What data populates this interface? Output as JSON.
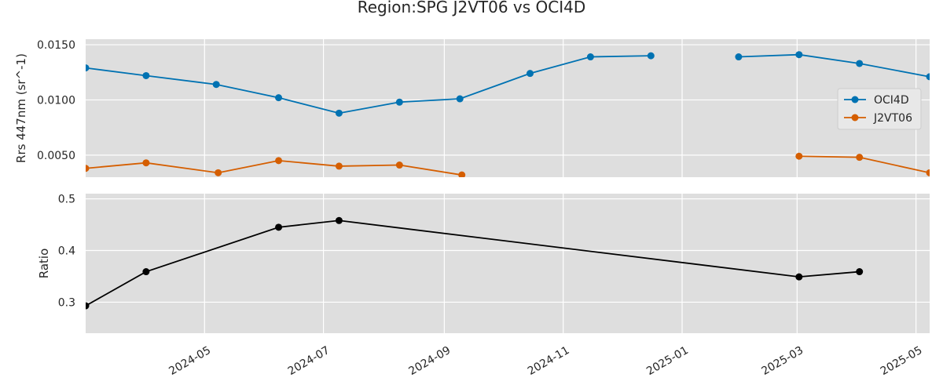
{
  "chart_data": {
    "type": "line",
    "title": "Region:SPG J2VT06 vs OCI4D",
    "x_tick_labels": [
      "2024-05",
      "2024-07",
      "2024-09",
      "2024-11",
      "2025-01",
      "2025-03",
      "2025-05"
    ],
    "x_ticks": [
      "2024-05-01",
      "2024-07-01",
      "2024-09-01",
      "2024-11-01",
      "2025-01-01",
      "2025-03-01",
      "2025-05-01"
    ],
    "xlim": [
      "2024-03-01",
      "2025-05-08"
    ],
    "grid": true,
    "subplots": [
      {
        "ylabel": "Rrs 447nm (sr^-1)",
        "ylim": [
          0.003,
          0.0155
        ],
        "y_ticks": [
          0.005,
          0.01,
          0.015
        ],
        "y_tick_labels": [
          "0.0050",
          "0.0100",
          "0.0150"
        ],
        "legend_position": "center-right",
        "series": [
          {
            "name": "OCI4D",
            "color": "#0072b2",
            "points": [
              {
                "x": "2024-03-01",
                "y": 0.0129
              },
              {
                "x": "2024-04-01",
                "y": 0.0122
              },
              {
                "x": "2024-05-07",
                "y": 0.0114
              },
              {
                "x": "2024-06-08",
                "y": 0.0102
              },
              {
                "x": "2024-07-09",
                "y": 0.0088
              },
              {
                "x": "2024-08-09",
                "y": 0.0098
              },
              {
                "x": "2024-09-09",
                "y": 0.0101
              },
              {
                "x": "2024-10-15",
                "y": 0.0124
              },
              {
                "x": "2024-11-15",
                "y": 0.0139
              },
              {
                "x": "2024-12-16",
                "y": 0.014
              },
              {
                "x": null,
                "y": null
              },
              {
                "x": "2025-01-30",
                "y": 0.0139
              },
              {
                "x": "2025-03-02",
                "y": 0.0141
              },
              {
                "x": "2025-04-02",
                "y": 0.0133
              },
              {
                "x": "2025-05-08",
                "y": 0.0121
              }
            ]
          },
          {
            "name": "J2VT06",
            "color": "#d55e00",
            "points": [
              {
                "x": "2024-03-01",
                "y": 0.0038
              },
              {
                "x": "2024-04-01",
                "y": 0.0043
              },
              {
                "x": "2024-05-08",
                "y": 0.0034
              },
              {
                "x": "2024-06-08",
                "y": 0.0045
              },
              {
                "x": "2024-07-09",
                "y": 0.004
              },
              {
                "x": "2024-08-09",
                "y": 0.0041
              },
              {
                "x": "2024-09-10",
                "y": 0.0032
              },
              {
                "x": null,
                "y": null
              },
              {
                "x": "2025-03-02",
                "y": 0.0049
              },
              {
                "x": "2025-04-02",
                "y": 0.0048
              },
              {
                "x": "2025-05-08",
                "y": 0.0034
              }
            ]
          }
        ]
      },
      {
        "ylabel": "Ratio",
        "ylim": [
          0.24,
          0.51
        ],
        "y_ticks": [
          0.3,
          0.4,
          0.5
        ],
        "y_tick_labels": [
          "0.3",
          "0.4",
          "0.5"
        ],
        "series": [
          {
            "color": "#000000",
            "points": [
              {
                "x": "2024-03-01",
                "y": 0.293
              },
              {
                "x": "2024-04-01",
                "y": 0.359
              },
              {
                "x": "2024-06-08",
                "y": 0.445
              },
              {
                "x": "2024-07-09",
                "y": 0.458
              },
              {
                "x": "2025-03-02",
                "y": 0.349
              },
              {
                "x": "2025-04-02",
                "y": 0.359
              }
            ]
          }
        ]
      }
    ]
  }
}
